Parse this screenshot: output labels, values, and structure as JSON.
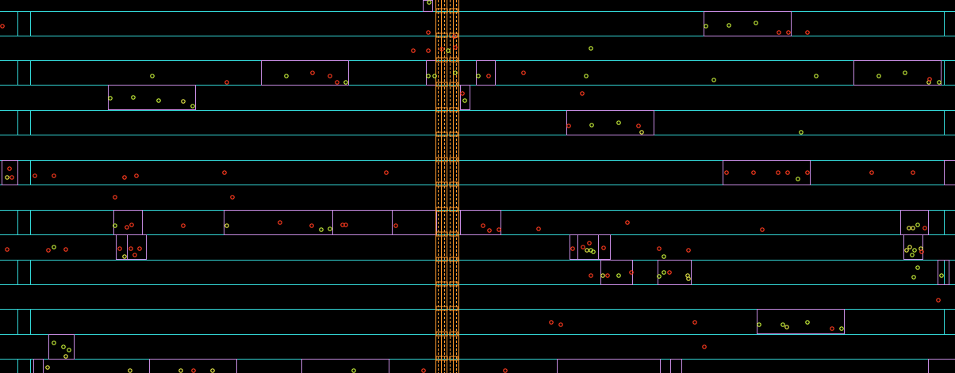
{
  "viewer": {
    "background_color": "#000000",
    "row_line_color": "#33d6d6",
    "cell_outline_color": "#c58be0",
    "channel_line_color": "#ff9a2e",
    "pin_red_color": "#ff3b1f",
    "pin_green_color": "#c8f03a",
    "pin_yellow_color": "#e8e84a",
    "pin_icon": "circle-marker-icon"
  },
  "layout_stats": {
    "row_count": 15,
    "cell_count": 42,
    "pin_count": 150
  }
}
